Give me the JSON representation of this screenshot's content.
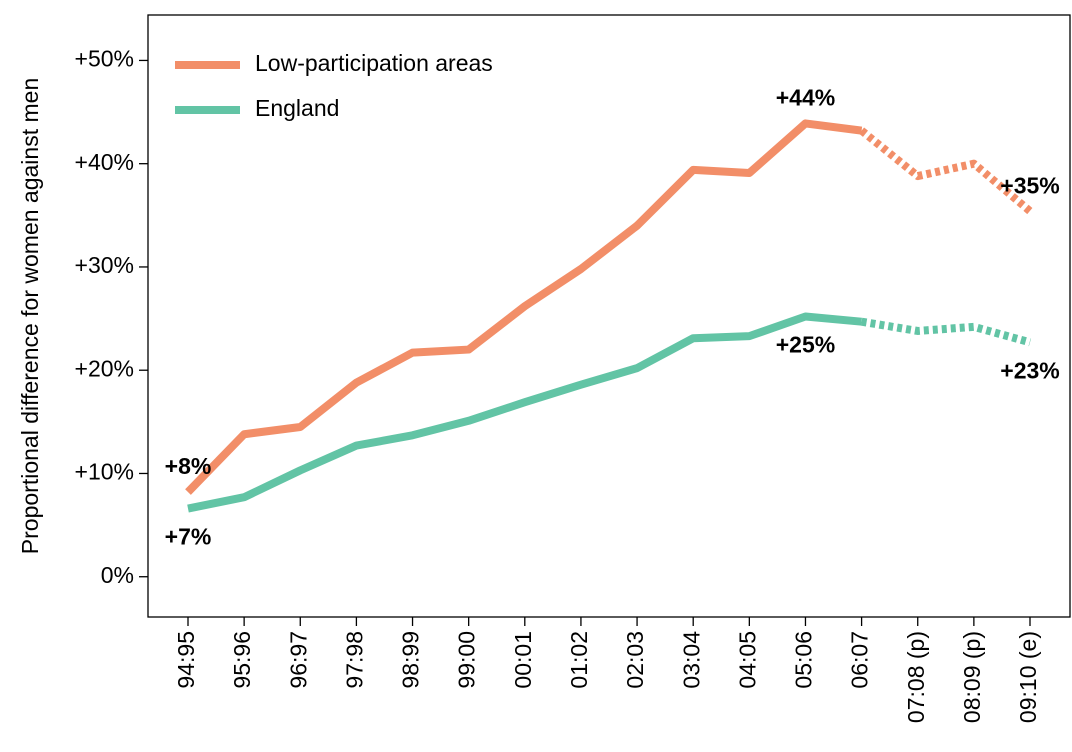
{
  "chart_data": {
    "type": "line",
    "y_label": "Proportional difference for women against men",
    "categories": [
      "94:95",
      "95:96",
      "96:97",
      "97:98",
      "98:99",
      "99:00",
      "00:01",
      "01:02",
      "02:03",
      "03:04",
      "04:05",
      "05:06",
      "06:07",
      "07:08 (p)",
      "08:09 (p)",
      "09:10 (e)"
    ],
    "dashed_from": "06:07",
    "series": [
      {
        "name": "Low-participation areas",
        "color": "#f28e68",
        "label_side": "above",
        "values": [
          8.2,
          13.8,
          14.5,
          18.8,
          21.7,
          22.0,
          26.2,
          29.8,
          34.0,
          39.4,
          39.1,
          43.9,
          43.2,
          38.8,
          40.0,
          35.4
        ],
        "value_labels": [
          "+8%",
          null,
          null,
          null,
          null,
          null,
          null,
          null,
          null,
          null,
          null,
          "+44%",
          null,
          null,
          null,
          "+35%"
        ]
      },
      {
        "name": "England",
        "color": "#62c4a5",
        "label_side": "below",
        "values": [
          6.6,
          7.7,
          10.3,
          12.7,
          13.7,
          15.1,
          16.9,
          18.6,
          20.2,
          23.1,
          23.3,
          25.2,
          24.7,
          23.8,
          24.2,
          22.7
        ],
        "value_labels": [
          "+7%",
          null,
          null,
          null,
          null,
          null,
          null,
          null,
          null,
          null,
          null,
          "+25%",
          null,
          null,
          null,
          "+23%"
        ]
      }
    ],
    "ylim": [
      -3.9,
      54.4
    ],
    "yticks": [
      {
        "value": 0,
        "label": "0%"
      },
      {
        "value": 10,
        "label": "+10%"
      },
      {
        "value": 20,
        "label": "+20%"
      },
      {
        "value": 30,
        "label": "+30%"
      },
      {
        "value": 40,
        "label": "+40%"
      },
      {
        "value": 50,
        "label": "+50%"
      }
    ],
    "legend": "top-left"
  }
}
